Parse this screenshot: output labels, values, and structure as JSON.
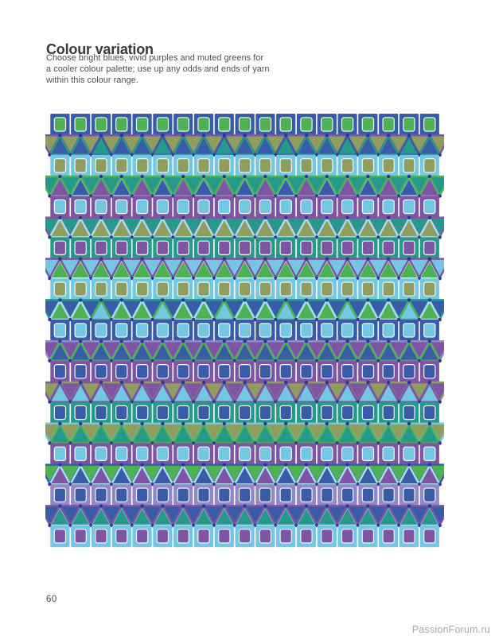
{
  "page": {
    "title": "Colour variation",
    "body_lines": [
      "Choose bright blues, vivid purples and muted greens for",
      "a cooler colour palette; use up any odds and ends of yarn",
      "within this colour range."
    ],
    "page_number": "60",
    "watermark": "PassionForum.ru"
  },
  "palette": {
    "blue": "#3a5ca8",
    "green": "#4fb155",
    "cyan": "#73c7e3",
    "olive": "#8f9d5e",
    "purple": "#7d55a3",
    "teal": "#27998b",
    "lavender": "#9189c7",
    "navy": "#2c3890",
    "pale": "#eef5f0",
    "pale_cyan": "#aadcee"
  },
  "pattern": {
    "columns": 19,
    "cell_width": 25.8,
    "square_row_height": 27.2,
    "triangle_row_height": 24.6,
    "square_gap": 1.6,
    "triangle_stroke": 2.5,
    "dot_radius": 2.2,
    "dot_color": "navy",
    "keyline_color": "#f0f6f3",
    "rows": [
      {
        "type": "squares",
        "border": "blue",
        "fill": "green"
      },
      {
        "type": "triangles",
        "up_fill": [
          "blue",
          "blue",
          "teal"
        ],
        "up_border": [
          "teal",
          "teal",
          "blue"
        ],
        "down_fill": [
          "olive"
        ],
        "down_border": [
          "purple"
        ]
      },
      {
        "type": "squares",
        "border": "cyan",
        "fill": "olive"
      },
      {
        "type": "triangles",
        "down_on_top": true,
        "down_fill": [
          "teal"
        ],
        "down_border": [
          "green"
        ],
        "up_fill": [
          "purple",
          "blue"
        ],
        "up_border": [
          "lavender",
          "pale_cyan"
        ]
      },
      {
        "type": "squares",
        "border": "purple",
        "fill": "cyan"
      },
      {
        "type": "triangles",
        "up_fill": [
          "olive"
        ],
        "up_border": [
          "pale_cyan"
        ],
        "down_fill": [
          "teal"
        ],
        "down_border": [
          "purple"
        ]
      },
      {
        "type": "squares",
        "border": "teal",
        "fill": "purple"
      },
      {
        "type": "triangles",
        "down_on_top": true,
        "down_fill": [
          "cyan"
        ],
        "down_border": [
          "purple"
        ],
        "up_fill": [
          "green"
        ],
        "up_border": [
          "pale"
        ]
      },
      {
        "type": "squares",
        "border": "cyan",
        "fill": "olive"
      },
      {
        "type": "triangles",
        "up_fill": [
          "green",
          "green",
          "cyan"
        ],
        "up_border": [
          "pale_cyan",
          "pale_cyan",
          "green"
        ],
        "down_fill": [
          "blue"
        ],
        "down_border": [
          "teal"
        ]
      },
      {
        "type": "squares",
        "border": "blue",
        "fill": "cyan"
      },
      {
        "type": "triangles",
        "up_fill": [
          "blue"
        ],
        "up_border": [
          "green"
        ],
        "down_fill": [
          "purple"
        ],
        "down_border": [
          "lavender"
        ]
      },
      {
        "type": "squares",
        "border": "purple",
        "fill": "blue"
      },
      {
        "type": "triangles",
        "up_fill": [
          "cyan"
        ],
        "up_border": [
          "purple"
        ],
        "down_fill": [
          "olive",
          "purple"
        ],
        "down_border": [
          "purple",
          "olive"
        ]
      },
      {
        "type": "squares",
        "border": "teal",
        "fill": "blue"
      },
      {
        "type": "triangles",
        "up_fill": [
          "teal"
        ],
        "up_border": [
          "green"
        ],
        "down_fill": [
          "olive"
        ],
        "down_border": [
          "cyan"
        ]
      },
      {
        "type": "squares",
        "border": "purple",
        "fill": "cyan"
      },
      {
        "type": "triangles",
        "up_fill": [
          "purple",
          "blue"
        ],
        "up_border": [
          "pale_cyan"
        ],
        "down_fill": [
          "green"
        ],
        "down_border": [
          "blue"
        ]
      },
      {
        "type": "squares",
        "border": "lavender",
        "fill": "blue"
      },
      {
        "type": "triangles",
        "down_on_top": true,
        "down_fill": [
          "blue"
        ],
        "down_border": [
          "purple"
        ],
        "up_fill": [
          "teal"
        ],
        "up_border": [
          "pale_cyan"
        ]
      },
      {
        "type": "squares",
        "border": "cyan",
        "fill": "purple"
      }
    ]
  }
}
